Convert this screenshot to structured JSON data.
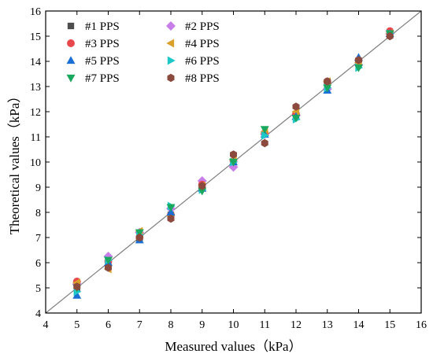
{
  "chart_data": {
    "type": "scatter",
    "xlabel": "Measured values（kPa）",
    "ylabel": "Theoretical values（kPa）",
    "xlim": [
      4,
      16
    ],
    "ylim": [
      4,
      16
    ],
    "xticks": [
      4,
      5,
      6,
      7,
      8,
      9,
      10,
      11,
      12,
      13,
      14,
      15,
      16
    ],
    "yticks": [
      4,
      5,
      6,
      7,
      8,
      9,
      10,
      11,
      12,
      13,
      14,
      15,
      16
    ],
    "reference_line": {
      "from": [
        4,
        4
      ],
      "to": [
        16,
        16
      ],
      "color": "#7f7f7f"
    },
    "grid": false,
    "legend": {
      "position": "top-left",
      "columns": 2
    },
    "series": [
      {
        "name": "#1 PPS",
        "marker": "square",
        "color": "#4d4d4d",
        "x": [
          5,
          6,
          7,
          8,
          9,
          10,
          11,
          12,
          13,
          14,
          15
        ],
        "y": [
          4.95,
          6.0,
          6.95,
          7.9,
          9.05,
          10.0,
          11.1,
          11.8,
          13.0,
          13.9,
          15.05
        ]
      },
      {
        "name": "#2 PPS",
        "marker": "diamond",
        "color": "#c77ee8",
        "x": [
          5,
          6,
          7,
          8,
          9,
          10,
          11,
          12,
          13,
          14,
          15
        ],
        "y": [
          5.15,
          6.25,
          7.2,
          8.15,
          9.25,
          9.8,
          11.1,
          11.85,
          12.9,
          13.85,
          15.1
        ]
      },
      {
        "name": "#3 PPS",
        "marker": "circle",
        "color": "#e8474c",
        "x": [
          5,
          6,
          7,
          8,
          9,
          10,
          11,
          12,
          13,
          14,
          15
        ],
        "y": [
          5.25,
          6.05,
          7.0,
          7.9,
          9.1,
          10.05,
          11.15,
          11.9,
          13.2,
          14.05,
          15.2
        ]
      },
      {
        "name": "#4 PPS",
        "marker": "triangle-left",
        "color": "#d9a02a",
        "x": [
          5,
          6,
          7,
          8,
          9,
          10,
          11,
          12,
          13,
          14,
          15
        ],
        "y": [
          5.2,
          5.75,
          7.25,
          7.85,
          9.05,
          10.1,
          11.2,
          12.0,
          13.2,
          13.95,
          15.1
        ]
      },
      {
        "name": "#5 PPS",
        "marker": "triangle-up",
        "color": "#1a6fd4",
        "x": [
          5,
          6,
          7,
          8,
          9,
          10,
          11,
          12,
          13,
          14,
          15
        ],
        "y": [
          4.7,
          6.0,
          6.9,
          8.0,
          8.95,
          10.0,
          11.1,
          11.8,
          12.85,
          14.15,
          15.1
        ]
      },
      {
        "name": "#6 PPS",
        "marker": "triangle-right",
        "color": "#1ec8c8",
        "x": [
          5,
          6,
          7,
          8,
          9,
          10,
          11,
          12,
          13,
          14,
          15
        ],
        "y": [
          4.85,
          6.1,
          7.1,
          8.25,
          8.9,
          10.0,
          11.05,
          11.7,
          12.95,
          13.75,
          15.1
        ]
      },
      {
        "name": "#7 PPS",
        "marker": "triangle-down",
        "color": "#1aa85e",
        "x": [
          5,
          6,
          7,
          8,
          9,
          10,
          11,
          12,
          13,
          14,
          15
        ],
        "y": [
          5.0,
          6.1,
          7.2,
          8.2,
          8.85,
          10.0,
          11.3,
          11.75,
          12.95,
          13.75,
          15.1
        ]
      },
      {
        "name": "#8 PPS",
        "marker": "hexagon",
        "color": "#8b4a3e",
        "x": [
          5,
          6,
          7,
          8,
          9,
          10,
          11,
          12,
          13,
          14,
          15
        ],
        "y": [
          5.05,
          5.8,
          7.0,
          7.75,
          9.05,
          10.3,
          10.75,
          12.2,
          13.2,
          14.05,
          15.0
        ]
      }
    ]
  }
}
